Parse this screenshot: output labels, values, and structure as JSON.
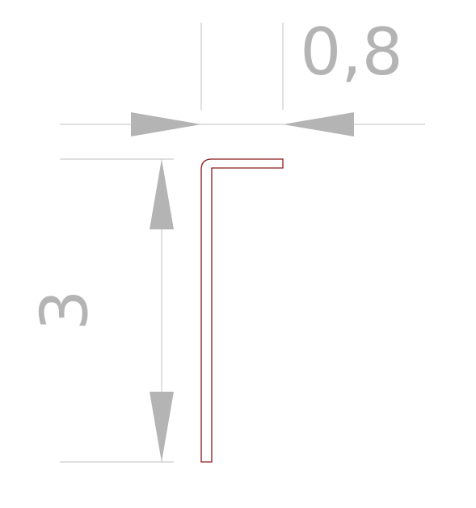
{
  "dimensions": {
    "width_label": "0,8",
    "height_label": "3"
  },
  "colors": {
    "profile_stroke": "#8b1a1a",
    "dimension_color": "#b4b4b4",
    "extension_line_color": "#c0c0c0"
  }
}
